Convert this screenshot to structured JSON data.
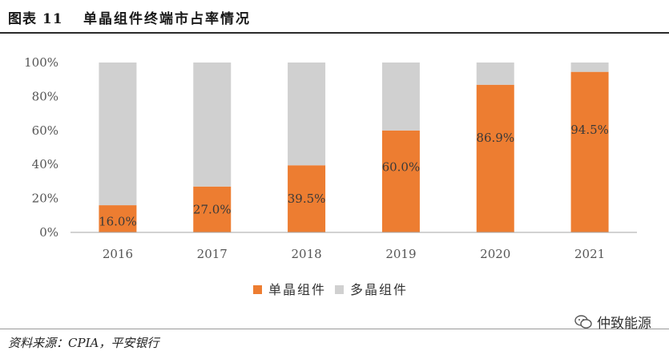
{
  "header": {
    "figure_no": "图表 11",
    "title": "单晶组件终端市占率情况"
  },
  "footer": {
    "source": "资料来源：CPIA，平安银行",
    "watermark": "仲致能源"
  },
  "colors": {
    "mono": "#ED7D31",
    "poly": "#D0D0D0",
    "axis": "#A6A6A6"
  },
  "chart_data": {
    "type": "bar",
    "stacked": true,
    "categories": [
      "2016",
      "2017",
      "2018",
      "2019",
      "2020",
      "2021"
    ],
    "series": [
      {
        "name": "单晶组件",
        "values": [
          16.0,
          27.0,
          39.5,
          60.0,
          86.9,
          94.5
        ]
      },
      {
        "name": "多晶组件",
        "values": [
          84.0,
          73.0,
          60.5,
          40.0,
          13.1,
          5.5
        ]
      }
    ],
    "data_labels": [
      "16.0%",
      "27.0%",
      "39.5%",
      "60.0%",
      "86.9%",
      "94.5%"
    ],
    "ylim": [
      0,
      100
    ],
    "yticks": [
      "0%",
      "20%",
      "40%",
      "60%",
      "80%",
      "100%"
    ],
    "legend": "bottom",
    "grid": false
  }
}
